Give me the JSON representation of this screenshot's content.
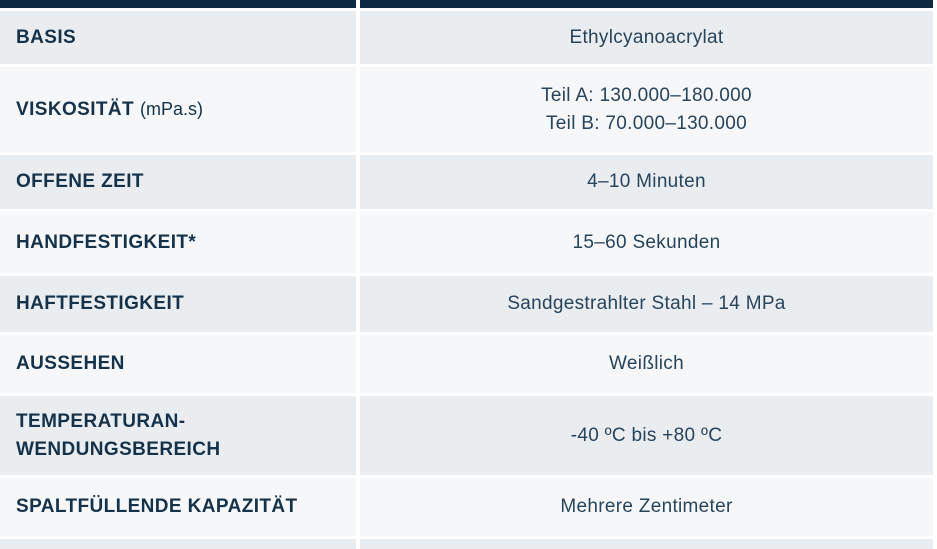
{
  "colors": {
    "bar": "#0c2a40",
    "row_odd": "#e9edf0",
    "row_even": "#f5f7f8",
    "label_text": "#14324a",
    "value_text": "#27445d"
  },
  "table": {
    "rows": [
      {
        "label": "BASIS",
        "value": "Ethylcyanoacrylat"
      },
      {
        "label": "VISKOSITÄT",
        "label_suffix": "(mPa.s)",
        "value": "Teil A: 130.000–180.000\nTeil B: 70.000–130.000"
      },
      {
        "label": "OFFENE ZEIT",
        "value": "4–10 Minuten"
      },
      {
        "label": "HANDFESTIGKEIT*",
        "value": "15–60 Sekunden"
      },
      {
        "label": "HAFTFESTIGKEIT",
        "value": "Sandgestrahlter Stahl – 14 MPa"
      },
      {
        "label": "AUSSEHEN",
        "value": "Weißlich"
      },
      {
        "label": "TEMPERATURAN-\nWENDUNGSBEREICH",
        "value": "-40 ºC bis +80 ºC"
      },
      {
        "label": "SPALTFÜLLENDE KAPAZITÄT",
        "value": "Mehrere Zentimeter"
      }
    ]
  }
}
